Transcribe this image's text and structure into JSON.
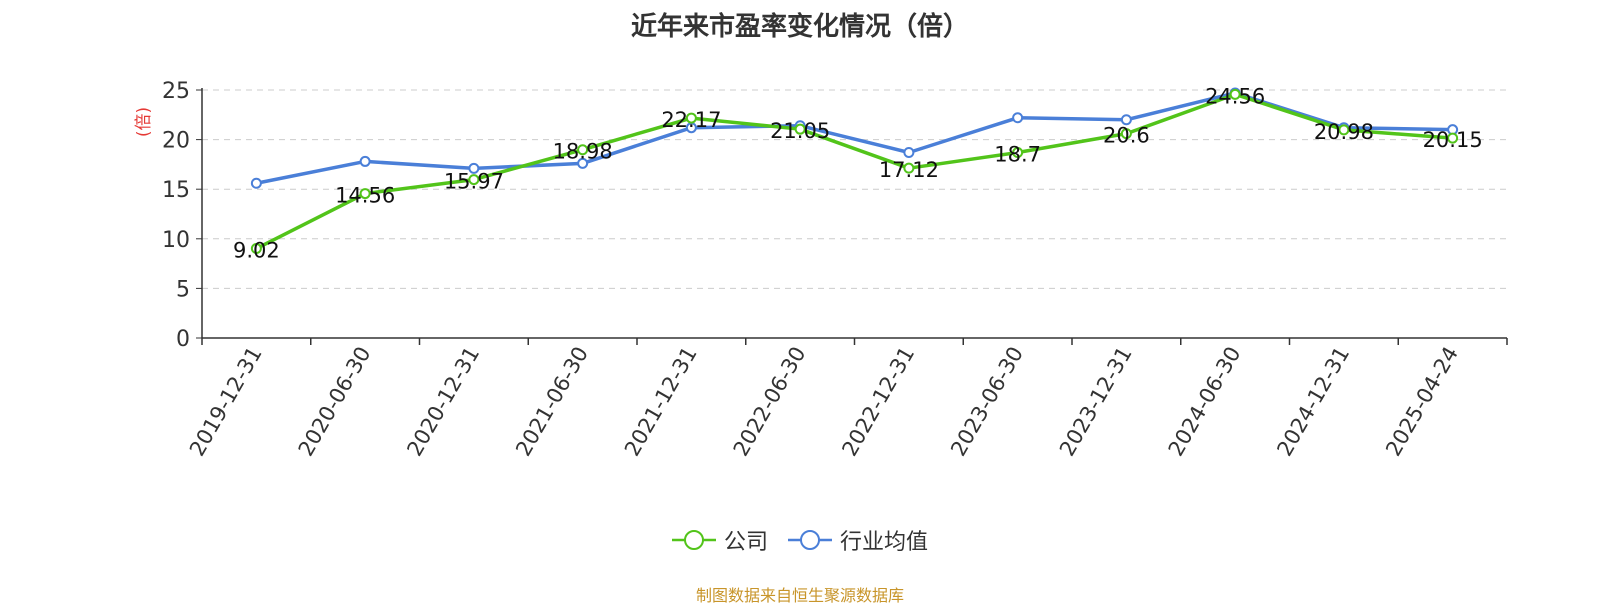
{
  "chart_data": {
    "type": "line",
    "title": "近年来市盈率变化情况（倍）",
    "ylabel": "(倍)",
    "xlabel": "",
    "categories": [
      "2019-12-31",
      "2020-06-30",
      "2020-12-31",
      "2021-06-30",
      "2021-12-31",
      "2022-06-30",
      "2022-12-31",
      "2023-06-30",
      "2023-12-31",
      "2024-06-30",
      "2024-12-31",
      "2025-04-24"
    ],
    "ylim": [
      0,
      25
    ],
    "yticks": [
      "0",
      "5",
      "10",
      "15",
      "20",
      "25"
    ],
    "grid": true,
    "legend_position": "bottom",
    "series": [
      {
        "name": "公司",
        "color": "#52c41a",
        "values": [
          9.02,
          14.56,
          15.97,
          18.98,
          22.17,
          21.05,
          17.12,
          18.7,
          20.6,
          24.56,
          20.98,
          20.15
        ],
        "labels": [
          "9.02",
          "14.56",
          "15.97",
          "18.98",
          "22.17",
          "21.05",
          "17.12",
          "18.7",
          "20.6",
          "24.56",
          "20.98",
          "20.15"
        ]
      },
      {
        "name": "行业均值",
        "color": "#4a7fd8",
        "values": [
          15.6,
          17.8,
          17.1,
          17.6,
          21.2,
          21.4,
          18.7,
          22.2,
          22.0,
          24.7,
          21.2,
          21.0
        ]
      }
    ]
  },
  "source": "制图数据来自恒生聚源数据库",
  "colors": {
    "ylabel": "#e53935",
    "source": "#c8952a"
  }
}
